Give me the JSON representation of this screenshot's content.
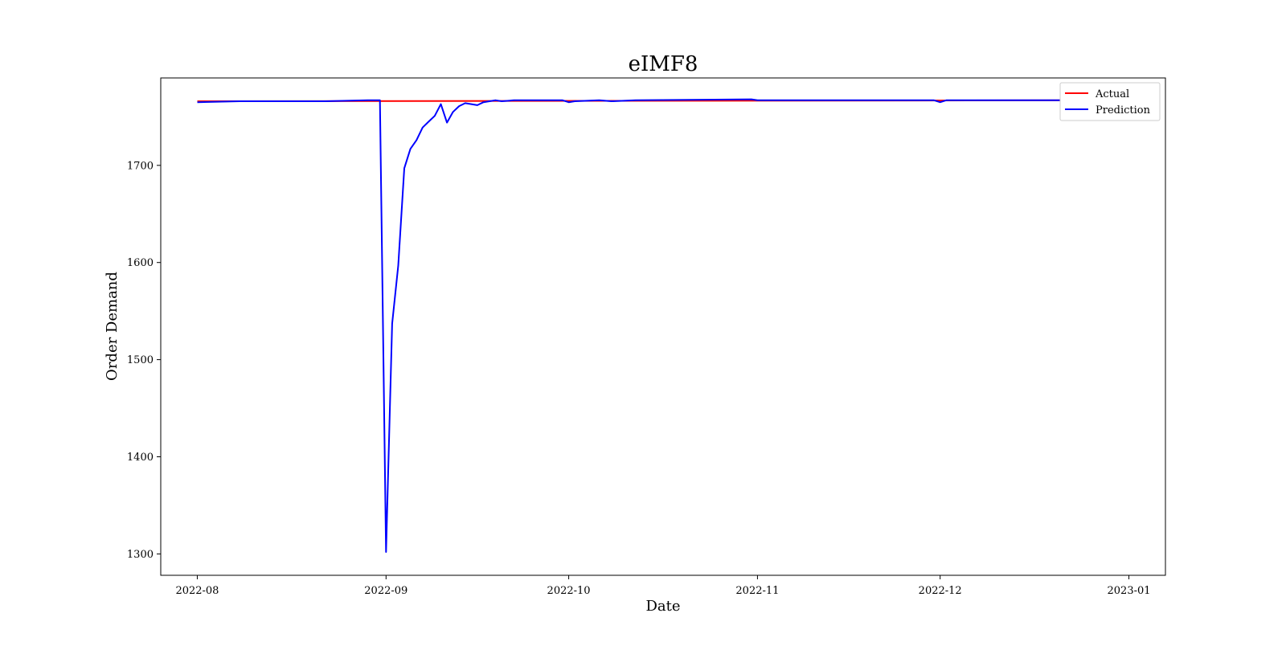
{
  "chart_data": {
    "type": "line",
    "title": "eIMF8",
    "xlabel": "Date",
    "ylabel": "Order Demand",
    "x_range": [
      "2022-07-26",
      "2023-01-07"
    ],
    "ylim": [
      1278,
      1790
    ],
    "x_ticks": [
      "2022-08",
      "2022-09",
      "2022-10",
      "2022-11",
      "2022-12",
      "2023-01"
    ],
    "x_tick_dates": [
      "2022-08-01",
      "2022-09-01",
      "2022-10-01",
      "2022-11-01",
      "2022-12-01",
      "2023-01-01"
    ],
    "y_ticks": [
      1300,
      1400,
      1500,
      1600,
      1700
    ],
    "grid": false,
    "legend_position": "top-right",
    "series": [
      {
        "name": "Actual",
        "color": "#ff0000",
        "points": [
          [
            "2022-08-01",
            1766
          ],
          [
            "2022-12-31",
            1767
          ]
        ]
      },
      {
        "name": "Prediction",
        "color": "#0000ff",
        "points": [
          [
            "2022-08-01",
            1765
          ],
          [
            "2022-08-08",
            1766
          ],
          [
            "2022-08-15",
            1766
          ],
          [
            "2022-08-22",
            1766
          ],
          [
            "2022-08-29",
            1767
          ],
          [
            "2022-08-30",
            1767
          ],
          [
            "2022-08-31",
            1767
          ],
          [
            "2022-09-01",
            1302
          ],
          [
            "2022-09-02",
            1537
          ],
          [
            "2022-09-03",
            1597
          ],
          [
            "2022-09-04",
            1697
          ],
          [
            "2022-09-05",
            1717
          ],
          [
            "2022-09-06",
            1726
          ],
          [
            "2022-09-07",
            1739
          ],
          [
            "2022-09-08",
            1745
          ],
          [
            "2022-09-09",
            1751
          ],
          [
            "2022-09-10",
            1763
          ],
          [
            "2022-09-11",
            1744
          ],
          [
            "2022-09-12",
            1755
          ],
          [
            "2022-09-13",
            1761
          ],
          [
            "2022-09-14",
            1764
          ],
          [
            "2022-09-15",
            1763
          ],
          [
            "2022-09-16",
            1762
          ],
          [
            "2022-09-17",
            1765
          ],
          [
            "2022-09-18",
            1766
          ],
          [
            "2022-09-19",
            1767
          ],
          [
            "2022-09-20",
            1766
          ],
          [
            "2022-09-22",
            1767
          ],
          [
            "2022-09-30",
            1767
          ],
          [
            "2022-10-01",
            1765
          ],
          [
            "2022-10-02",
            1766
          ],
          [
            "2022-10-06",
            1767
          ],
          [
            "2022-10-08",
            1766
          ],
          [
            "2022-10-12",
            1767
          ],
          [
            "2022-10-31",
            1768
          ],
          [
            "2022-11-01",
            1767
          ],
          [
            "2022-11-30",
            1767
          ],
          [
            "2022-12-01",
            1765
          ],
          [
            "2022-12-02",
            1767
          ],
          [
            "2022-12-31",
            1767
          ]
        ]
      }
    ]
  }
}
